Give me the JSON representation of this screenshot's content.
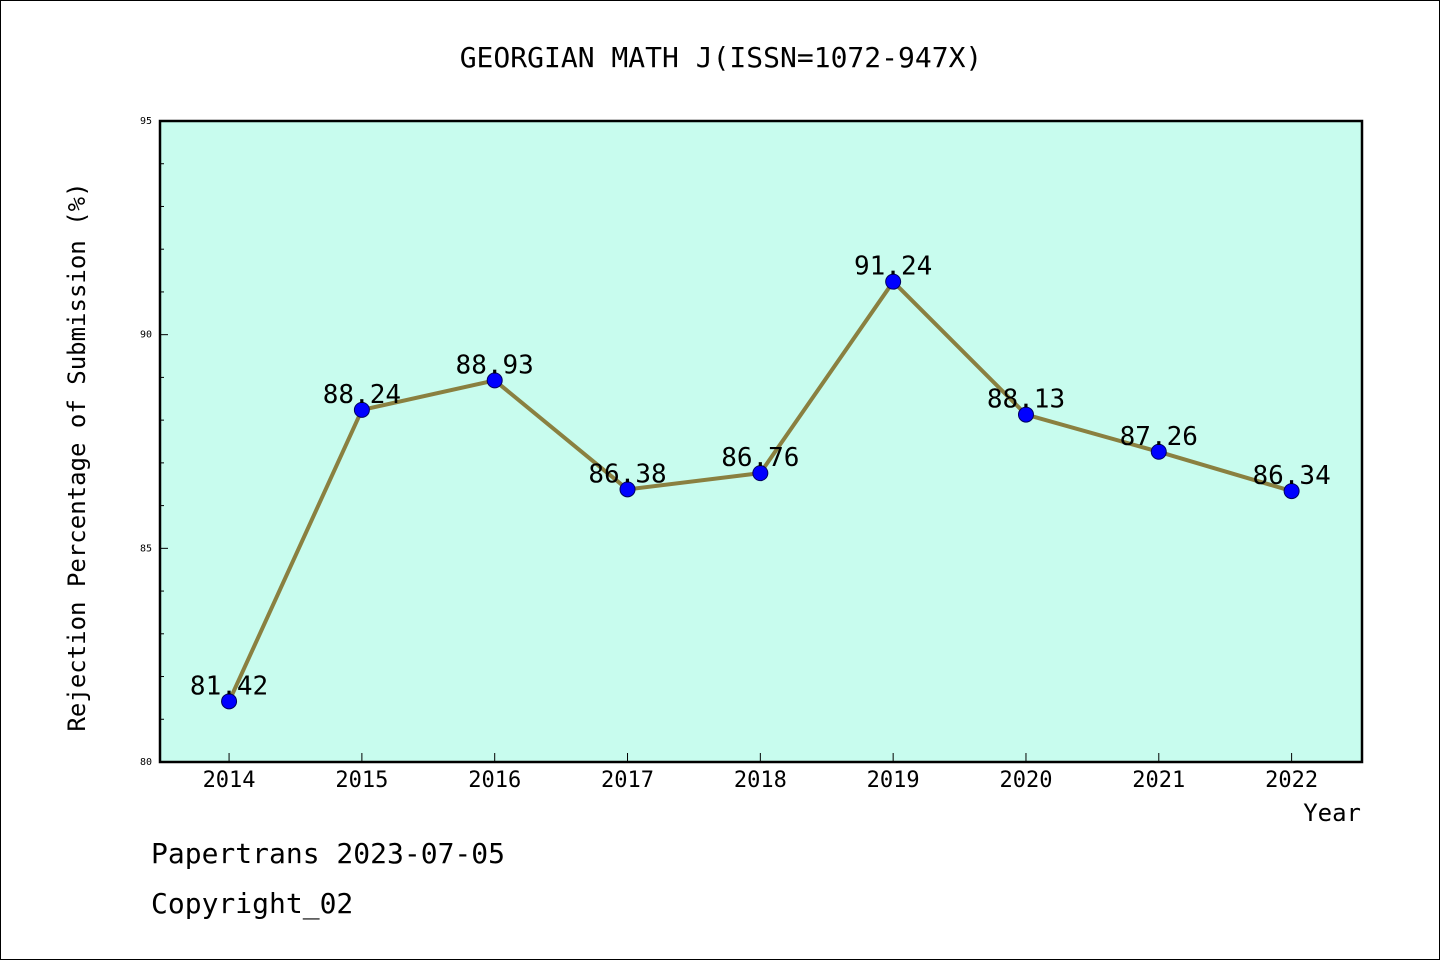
{
  "chart_data": {
    "type": "line",
    "title": "GEORGIAN MATH J(ISSN=1072-947X)",
    "xlabel": "Year",
    "ylabel": "Rejection Percentage of Submission (%)",
    "ylim": [
      80,
      95
    ],
    "yticks": [
      80,
      85,
      90,
      95
    ],
    "categories": [
      "2014",
      "2015",
      "2016",
      "2017",
      "2018",
      "2019",
      "2020",
      "2021",
      "2022"
    ],
    "series": [
      {
        "values": [
          81.42,
          88.24,
          88.93,
          86.38,
          86.76,
          91.24,
          88.13,
          87.26,
          86.34
        ],
        "labels": [
          "81.42",
          "88.24",
          "88.93",
          "86.38",
          "86.76",
          "91.24",
          "88.13",
          "87.26",
          "86.34"
        ]
      }
    ],
    "grid": false,
    "colors": {
      "background": "#c8fcee",
      "line": "#8a8040",
      "marker": "#0000ff"
    }
  },
  "footer": {
    "line1": "Papertrans 2023-07-05",
    "line2": "Copyright_02"
  }
}
